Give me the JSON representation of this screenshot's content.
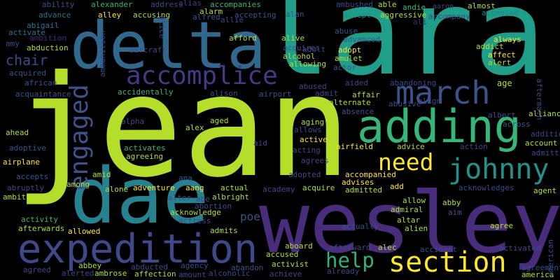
{
  "words": [
    {
      "text": "jean",
      "color": "#b5de2b"
    },
    {
      "text": "lara",
      "color": "#1f9e89"
    },
    {
      "text": "wesley",
      "color": "#472d7b"
    },
    {
      "text": "delta",
      "color": "#31688e"
    },
    {
      "text": "dae",
      "color": "#26828e"
    },
    {
      "text": "expedition",
      "color": "#3e4989"
    },
    {
      "text": "adding",
      "color": "#35b779"
    },
    {
      "text": "accomplice",
      "color": "#443983"
    },
    {
      "text": "march",
      "color": "#3b528b"
    },
    {
      "text": "johnny",
      "color": "#21918c"
    },
    {
      "text": "section",
      "color": "#fde725"
    },
    {
      "text": "help",
      "color": "#2db27d"
    },
    {
      "text": "need",
      "color": "#fde725"
    },
    {
      "text": "engaged",
      "color": "#3b528b"
    },
    {
      "text": "chair",
      "color": "#3e4989"
    },
    {
      "text": "poe",
      "color": "#3b528b"
    },
    {
      "text": "ability",
      "color": "#3b528b"
    },
    {
      "text": "alexander",
      "color": "#35b779"
    },
    {
      "text": "address",
      "color": "#3e4989"
    },
    {
      "text": "alias",
      "color": "#443983"
    },
    {
      "text": "accompanies",
      "color": "#35b779"
    },
    {
      "text": "ambushed",
      "color": "#3e4989"
    },
    {
      "text": "able",
      "color": "#b5de2b"
    },
    {
      "text": "andie",
      "color": "#35b779"
    },
    {
      "text": "aaron",
      "color": "#3e4989"
    },
    {
      "text": "almost",
      "color": "#b5de2b"
    },
    {
      "text": "advance",
      "color": "#2c728e"
    },
    {
      "text": "alley",
      "color": "#fde725"
    },
    {
      "text": "accusing",
      "color": "#b5de2b"
    },
    {
      "text": "alarm",
      "color": "#b5de2b"
    },
    {
      "text": "alfred",
      "color": "#3b528b"
    },
    {
      "text": "accepting",
      "color": "#3b528b"
    },
    {
      "text": "alan",
      "color": "#3b528b"
    },
    {
      "text": "accept",
      "color": "#21918c"
    },
    {
      "text": "aggressive",
      "color": "#b5de2b"
    },
    {
      "text": "accompany",
      "color": "#3e4989"
    },
    {
      "text": "accepted",
      "color": "#26828e"
    },
    {
      "text": "abigail",
      "color": "#2c728e"
    },
    {
      "text": "activate",
      "color": "#2c728e"
    },
    {
      "text": "ambition",
      "color": "#482878"
    },
    {
      "text": "amy",
      "color": "#3e4989"
    },
    {
      "text": "abduction",
      "color": "#b5de2b"
    },
    {
      "text": "allie",
      "color": "#3e4989"
    },
    {
      "text": "afford",
      "color": "#b5de2b"
    },
    {
      "text": "alive",
      "color": "#b5de2b"
    },
    {
      "text": "acquires",
      "color": "#3b528b"
    },
    {
      "text": "adult",
      "color": "#3e4989"
    },
    {
      "text": "alcohol",
      "color": "#b5de2b"
    },
    {
      "text": "allowing",
      "color": "#b5de2b"
    },
    {
      "text": "abuse",
      "color": "#3b528b"
    },
    {
      "text": "advanced",
      "color": "#3b528b"
    },
    {
      "text": "adopt",
      "color": "#fde725"
    },
    {
      "text": "amulet",
      "color": "#b5de2b"
    },
    {
      "text": "actor",
      "color": "#3b528b"
    },
    {
      "text": "ali",
      "color": "#482878"
    },
    {
      "text": "always",
      "color": "#fde725"
    },
    {
      "text": "addict",
      "color": "#b5de2b"
    },
    {
      "text": "affect",
      "color": "#fde725"
    },
    {
      "text": "alert",
      "color": "#b5de2b"
    },
    {
      "text": "age",
      "color": "#b5de2b"
    },
    {
      "text": "aircraft",
      "color": "#3e4989"
    },
    {
      "text": "acquired",
      "color": "#3b528b"
    },
    {
      "text": "african",
      "color": "#3b528b"
    },
    {
      "text": "acquaintance",
      "color": "#3b528b"
    },
    {
      "text": "accidentally",
      "color": "#35b779"
    },
    {
      "text": "alison",
      "color": "#3e4989"
    },
    {
      "text": "airport",
      "color": "#3b528b"
    },
    {
      "text": "abused",
      "color": "#3e4989"
    },
    {
      "text": "aided",
      "color": "#3e4989"
    },
    {
      "text": "abandoning",
      "color": "#3e4989"
    },
    {
      "text": "admit",
      "color": "#3e4989"
    },
    {
      "text": "affair",
      "color": "#b5de2b"
    },
    {
      "text": "alternate",
      "color": "#b5de2b"
    },
    {
      "text": "abusive",
      "color": "#3e4989"
    },
    {
      "text": "align",
      "color": "#3e4989"
    },
    {
      "text": "absence",
      "color": "#3b528b"
    },
    {
      "text": "albert",
      "color": "#3e4989"
    },
    {
      "text": "alliance",
      "color": "#b5de2b"
    },
    {
      "text": "across",
      "color": "#3b528b"
    },
    {
      "text": "addition",
      "color": "#3e4989"
    },
    {
      "text": "account",
      "color": "#b5de2b"
    },
    {
      "text": "admitting",
      "color": "#3e4989"
    },
    {
      "text": "alpha",
      "color": "#3e4989"
    },
    {
      "text": "alex",
      "color": "#b5de2b"
    },
    {
      "text": "aged",
      "color": "#b5de2b"
    },
    {
      "text": "ah",
      "color": "#b5de2b"
    },
    {
      "text": "aging",
      "color": "#b5de2b"
    },
    {
      "text": "allows",
      "color": "#3e4989"
    },
    {
      "text": "active",
      "color": "#fde725"
    },
    {
      "text": "acting",
      "color": "#3e4989"
    },
    {
      "text": "agrees",
      "color": "#3e4989"
    },
    {
      "text": "airfield",
      "color": "#fde725"
    },
    {
      "text": "advice",
      "color": "#b5de2b"
    },
    {
      "text": "action",
      "color": "#3e4989"
    },
    {
      "text": "ahead",
      "color": "#b5de2b"
    },
    {
      "text": "adoptive",
      "color": "#3b528b"
    },
    {
      "text": "airplane",
      "color": "#fde725"
    },
    {
      "text": "activates",
      "color": "#35b779"
    },
    {
      "text": "agreeing",
      "color": "#b5de2b"
    },
    {
      "text": "accepts",
      "color": "#3b528b"
    },
    {
      "text": "amid",
      "color": "#b5de2b"
    },
    {
      "text": "among",
      "color": "#b5de2b"
    },
    {
      "text": "ana",
      "color": "#3b528b"
    },
    {
      "text": "aid",
      "color": "#3e4989"
    },
    {
      "text": "adopted",
      "color": "#3e4989"
    },
    {
      "text": "accompanied",
      "color": "#fde725"
    },
    {
      "text": "advises",
      "color": "#fde725"
    },
    {
      "text": "add",
      "color": "#fde725"
    },
    {
      "text": "admitted",
      "color": "#b5de2b"
    },
    {
      "text": "acquire",
      "color": "#b5de2b"
    },
    {
      "text": "academy",
      "color": "#3e4989"
    },
    {
      "text": "acknowledges",
      "color": "#3e4989"
    },
    {
      "text": "agent",
      "color": "#b5de2b"
    },
    {
      "text": "abruptly",
      "color": "#3e4989"
    },
    {
      "text": "ambitious",
      "color": "#b5de2b"
    },
    {
      "text": "alone",
      "color": "#b5de2b"
    },
    {
      "text": "adventure",
      "color": "#fde725"
    },
    {
      "text": "aang",
      "color": "#fde725"
    },
    {
      "text": "actual",
      "color": "#b5de2b"
    },
    {
      "text": "alter",
      "color": "#3e4989"
    },
    {
      "text": "abe",
      "color": "#3e4989"
    },
    {
      "text": "albright",
      "color": "#b5de2b"
    },
    {
      "text": "allow",
      "color": "#b5de2b"
    },
    {
      "text": "abby",
      "color": "#b5de2b"
    },
    {
      "text": "admiral",
      "color": "#b5de2b"
    },
    {
      "text": "aim",
      "color": "#3b528b"
    },
    {
      "text": "altar",
      "color": "#b5de2b"
    },
    {
      "text": "alien",
      "color": "#b5de2b"
    },
    {
      "text": "agree",
      "color": "#b5de2b"
    },
    {
      "text": "abortion",
      "color": "#3e4989"
    },
    {
      "text": "acknowledge",
      "color": "#b5de2b"
    },
    {
      "text": "actress",
      "color": "#3e4989"
    },
    {
      "text": "admits",
      "color": "#b5de2b"
    },
    {
      "text": "activity",
      "color": "#35b779"
    },
    {
      "text": "afterwards",
      "color": "#b5de2b"
    },
    {
      "text": "allowed",
      "color": "#fde725"
    },
    {
      "text": "actually",
      "color": "#3b528b"
    },
    {
      "text": "accused",
      "color": "#b5de2b"
    },
    {
      "text": "aboard",
      "color": "#b5de2b"
    },
    {
      "text": "afterward",
      "color": "#3e4989"
    },
    {
      "text": "alec",
      "color": "#b5de2b"
    },
    {
      "text": "accident",
      "color": "#3e4989"
    },
    {
      "text": "activated",
      "color": "#3e4989"
    },
    {
      "text": "activist",
      "color": "#b5de2b"
    },
    {
      "text": "achieve",
      "color": "#3e4989"
    },
    {
      "text": "abandon",
      "color": "#3b528b"
    },
    {
      "text": "agency",
      "color": "#3e4989"
    },
    {
      "text": "abbey",
      "color": "#b5de2b"
    },
    {
      "text": "abducted",
      "color": "#3e4989"
    },
    {
      "text": "agreed",
      "color": "#3e4989"
    },
    {
      "text": "alerted",
      "color": "#3e4989"
    },
    {
      "text": "ambrose",
      "color": "#b5de2b"
    },
    {
      "text": "affection",
      "color": "#b5de2b"
    },
    {
      "text": "amount",
      "color": "#3e4989"
    },
    {
      "text": "alcoholic",
      "color": "#3e4989"
    },
    {
      "text": "already",
      "color": "#3e4989"
    },
    {
      "text": "agreement",
      "color": "#3e4989"
    },
    {
      "text": "america",
      "color": "#b5de2b"
    },
    {
      "text": "aftermath",
      "color": "#3e4989"
    },
    {
      "text": "alice",
      "color": "#3e4989"
    },
    {
      "text": "ammunition",
      "color": "#3e4989"
    },
    {
      "text": "american",
      "color": "#3e4989"
    }
  ]
}
